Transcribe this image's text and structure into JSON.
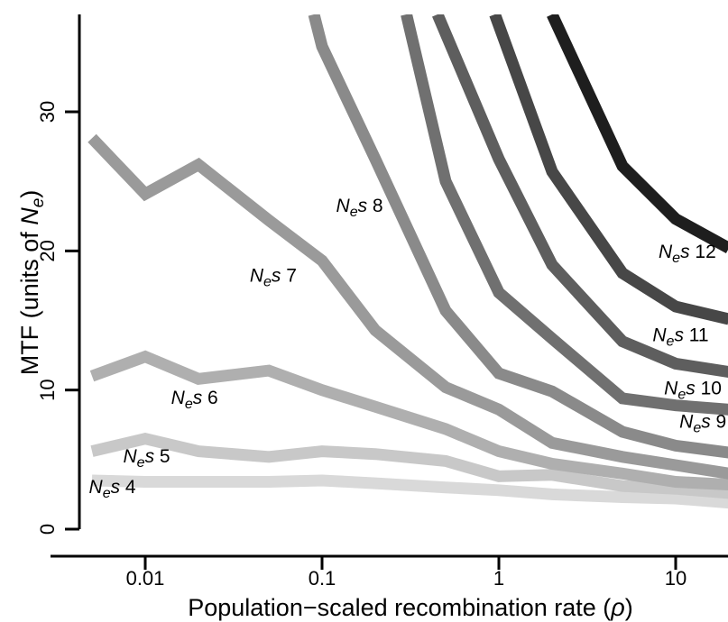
{
  "chart_data": {
    "type": "line",
    "xlabel": "Population−scaled recombination rate (ρ)",
    "ylabel": "MTF (units of Nₑ)",
    "x_scale": "log",
    "x_ticks": [
      0.01,
      0.1,
      1,
      10
    ],
    "x_tick_labels": [
      "0.01",
      "0.1",
      "1",
      "10"
    ],
    "y_ticks": [
      0,
      10,
      20,
      30
    ],
    "y_tick_labels": [
      "0",
      "10",
      "20",
      "30"
    ],
    "ylim": [
      0,
      37
    ],
    "grid": false,
    "legend": "none",
    "series": [
      {
        "name": "Nes 4",
        "label_main": "N",
        "label_sub": "e",
        "label_rest": "s 4",
        "color": "#d9d9d9",
        "x": [
          0.005,
          0.01,
          0.02,
          0.05,
          0.1,
          0.2,
          0.5,
          1,
          2,
          5,
          10,
          20
        ],
        "y": [
          3.5,
          3.4,
          3.4,
          3.4,
          3.5,
          3.3,
          3.0,
          2.8,
          2.5,
          2.3,
          2.2,
          1.9
        ]
      },
      {
        "name": "Nes 5",
        "label_main": "N",
        "label_sub": "e",
        "label_rest": "s 5",
        "color": "#c8c8c8",
        "x": [
          0.005,
          0.01,
          0.02,
          0.05,
          0.1,
          0.2,
          0.5,
          1,
          2,
          5,
          10,
          20
        ],
        "y": [
          5.6,
          6.5,
          5.6,
          5.2,
          5.6,
          5.4,
          4.9,
          3.8,
          3.9,
          3.1,
          2.9,
          2.6
        ]
      },
      {
        "name": "Nes 6",
        "label_main": "N",
        "label_sub": "e",
        "label_rest": "s 6",
        "color": "#afafaf",
        "x": [
          0.005,
          0.01,
          0.02,
          0.05,
          0.1,
          0.2,
          0.5,
          1,
          2,
          5,
          10,
          20
        ],
        "y": [
          11.0,
          12.4,
          10.8,
          11.4,
          10.0,
          8.8,
          7.2,
          5.6,
          4.7,
          4.0,
          3.4,
          3.2
        ]
      },
      {
        "name": "Nes 7",
        "label_main": "N",
        "label_sub": "e",
        "label_rest": "s 7",
        "color": "#9a9a9a",
        "x": [
          0.005,
          0.01,
          0.02,
          0.05,
          0.1,
          0.2,
          0.5,
          1,
          2,
          5,
          10,
          20
        ],
        "y": [
          28.1,
          24.1,
          26.2,
          22.2,
          19.3,
          14.3,
          10.2,
          8.6,
          6.2,
          5.2,
          4.6,
          4.0
        ]
      },
      {
        "name": "Nes 8",
        "label_main": "N",
        "label_sub": "e",
        "label_rest": "s 8",
        "color": "#8a8a8a",
        "x": [
          0.09,
          0.1,
          0.2,
          0.5,
          1,
          2,
          5,
          10,
          20
        ],
        "y": [
          37.0,
          34.7,
          26.6,
          15.7,
          11.2,
          9.9,
          7.0,
          6.0,
          5.5
        ]
      },
      {
        "name": "Nes 9",
        "label_main": "N",
        "label_sub": "e",
        "label_rest": "s 9",
        "color": "#707070",
        "x": [
          0.3,
          0.5,
          1,
          2,
          5,
          10,
          20
        ],
        "y": [
          37.0,
          25.0,
          17.0,
          13.7,
          9.4,
          8.9,
          8.6
        ]
      },
      {
        "name": "Nes 10",
        "label_main": "N",
        "label_sub": "e",
        "label_rest": "s 10",
        "color": "#5e5e5e",
        "x": [
          0.45,
          1,
          2,
          5,
          10,
          20
        ],
        "y": [
          37.0,
          26.6,
          19.0,
          13.5,
          11.9,
          11.3
        ]
      },
      {
        "name": "Nes 11",
        "label_main": "N",
        "label_sub": "e",
        "label_rest": "s 11",
        "color": "#474747",
        "x": [
          0.95,
          2,
          5,
          10,
          20
        ],
        "y": [
          37.0,
          25.7,
          18.4,
          16.0,
          15.1
        ]
      },
      {
        "name": "Nes 12",
        "label_main": "N",
        "label_sub": "e",
        "label_rest": "s 12",
        "color": "#1e1e1e",
        "x": [
          2,
          5,
          10,
          20
        ],
        "y": [
          37.0,
          26.1,
          22.3,
          20.2
        ]
      }
    ],
    "series_label_positions_data": [
      {
        "series": 0,
        "x": 0.0048,
        "y": 2.6
      },
      {
        "series": 1,
        "x": 0.0075,
        "y": 4.8
      },
      {
        "series": 2,
        "x": 0.014,
        "y": 9.0
      },
      {
        "series": 3,
        "x": 0.039,
        "y": 17.8
      },
      {
        "series": 4,
        "x": 0.12,
        "y": 22.8
      },
      {
        "series": 5,
        "x": 10.5,
        "y": 7.3
      },
      {
        "series": 6,
        "x": 8.6,
        "y": 9.7
      },
      {
        "series": 7,
        "x": 7.4,
        "y": 13.5
      },
      {
        "series": 8,
        "x": 8.0,
        "y": 19.5
      }
    ]
  }
}
